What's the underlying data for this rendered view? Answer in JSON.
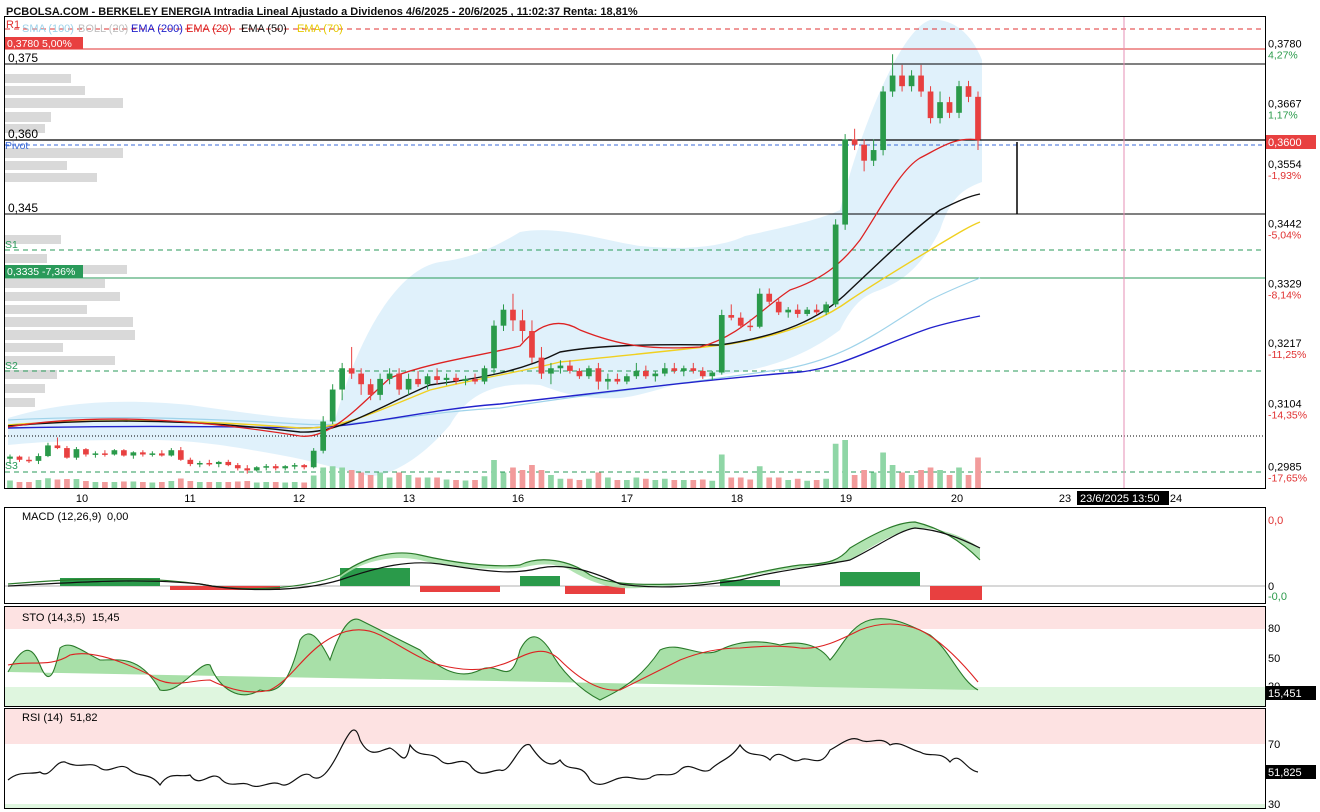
{
  "header": {
    "title": "PCBOLSA.COM - BERKELEY ENERGIA Intradia Lineal Ajustado a Dividenos 4/6/2025 - 20/6/2025 , 11:02:37 Renta: 18,81%",
    "r1": "R1",
    "legend": [
      {
        "label": "SMA (100)",
        "color": "#9fd3ea"
      },
      {
        "label": "BOLL (20)",
        "color": "#bfbfbf"
      },
      {
        "label": "EMA (200)",
        "color": "#2222cc"
      },
      {
        "label": "EMA (20)",
        "color": "#dd2222"
      },
      {
        "label": "EMA (50)",
        "color": "#111111"
      },
      {
        "label": "EMA (70)",
        "color": "#f0d020"
      }
    ]
  },
  "price_panel": {
    "left_tags": {
      "high_tag": "0,3780  5,00%",
      "low_tag": "0,3335  -7,36%",
      "level_0375": "0,375",
      "level_0360": "0,360",
      "level_0345": "0,345",
      "pivot": "Pivot",
      "s1": "S1",
      "s2": "S2",
      "s3": "S3"
    },
    "right_axis": [
      {
        "price": "0,3780",
        "pct": "4,27%",
        "pct_color": "#2a9a4a",
        "value": 0.378
      },
      {
        "price": "0,3667",
        "pct": "1,17%",
        "pct_color": "#2a9a4a",
        "value": 0.3667
      },
      {
        "price": "0,3554",
        "pct": "-1,93%",
        "pct_color": "#e03030",
        "value": 0.3554
      },
      {
        "price": "0,3442",
        "pct": "-5,04%",
        "pct_color": "#e03030",
        "value": 0.3442
      },
      {
        "price": "0,3329",
        "pct": "-8,14%",
        "pct_color": "#e03030",
        "value": 0.3329
      },
      {
        "price": "0,3217",
        "pct": "-11,25%",
        "pct_color": "#e03030",
        "value": 0.3217
      },
      {
        "price": "0,3104",
        "pct": "-14,35%",
        "pct_color": "#e03030",
        "value": 0.3104
      },
      {
        "price": "0,2985",
        "pct": "-17,65%",
        "pct_color": "#e03030",
        "value": 0.2985
      }
    ],
    "current_price": "0,3600",
    "x_labels": [
      "10",
      "11",
      "12",
      "13",
      "16",
      "17",
      "18",
      "19",
      "20",
      "23",
      "24"
    ],
    "cursor_label": "23/6/2025 13:50"
  },
  "macd_panel": {
    "title": "MACD (12,26,9)",
    "value": "0,00",
    "axis": [
      "0,0",
      "0",
      "-0,0"
    ]
  },
  "sto_panel": {
    "title": "STO (14,3,5)",
    "value": "15,45",
    "axis": [
      "80",
      "50",
      "20"
    ],
    "badge": "15,451"
  },
  "rsi_panel": {
    "title": "RSI (14)",
    "value": "51,82",
    "axis": [
      "70",
      "30"
    ],
    "badge": "51,825"
  },
  "chart_data": {
    "type": "line",
    "title": "PCBOLSA.COM - BERKELEY ENERGIA Intradia Lineal Ajustado a Dividenos 4/6/2025 - 20/6/2025 , 11:02:37 Renta: 18,81%",
    "x_categories": [
      "10",
      "11",
      "12",
      "13",
      "16",
      "17",
      "18",
      "19",
      "20"
    ],
    "ylim": [
      0.2945,
      0.383
    ],
    "horizontal_levels": {
      "R1": 0.3805,
      "level_0375": 0.375,
      "level_0360": 0.36,
      "pivot": 0.359,
      "level_0345": 0.3442,
      "S1": 0.337,
      "level_0335": 0.3329,
      "S2": 0.312,
      "S3": 0.2968
    },
    "candles": [
      [
        0.3,
        0.3008,
        0.299,
        0.3004
      ],
      [
        0.3004,
        0.3006,
        0.2994,
        0.2998
      ],
      [
        0.2998,
        0.3004,
        0.2992,
        0.2996
      ],
      [
        0.2996,
        0.301,
        0.299,
        0.3005
      ],
      [
        0.3005,
        0.303,
        0.3003,
        0.3025
      ],
      [
        0.3025,
        0.304,
        0.3018,
        0.302
      ],
      [
        0.302,
        0.3024,
        0.3,
        0.3002
      ],
      [
        0.3002,
        0.3022,
        0.2998,
        0.3018
      ],
      [
        0.3018,
        0.302,
        0.3004,
        0.3008
      ],
      [
        0.3008,
        0.3014,
        0.3002,
        0.301
      ],
      [
        0.301,
        0.3016,
        0.3004,
        0.3008
      ],
      [
        0.3008,
        0.3018,
        0.3006,
        0.3016
      ],
      [
        0.3016,
        0.3018,
        0.3004,
        0.3006
      ],
      [
        0.3006,
        0.3014,
        0.3,
        0.3012
      ],
      [
        0.3012,
        0.3016,
        0.3004,
        0.3008
      ],
      [
        0.3008,
        0.3014,
        0.3004,
        0.301
      ],
      [
        0.301,
        0.3016,
        0.3004,
        0.3006
      ],
      [
        0.3006,
        0.302,
        0.3004,
        0.3016
      ],
      [
        0.3016,
        0.3022,
        0.2996,
        0.2998
      ],
      [
        0.2998,
        0.3002,
        0.2986,
        0.299
      ],
      [
        0.299,
        0.2996,
        0.2984,
        0.2992
      ],
      [
        0.2992,
        0.2998,
        0.2986,
        0.299
      ],
      [
        0.299,
        0.2996,
        0.2984,
        0.2994
      ],
      [
        0.2994,
        0.2998,
        0.2986,
        0.2988
      ],
      [
        0.2988,
        0.2992,
        0.2978,
        0.2982
      ],
      [
        0.2982,
        0.2988,
        0.2972,
        0.2978
      ],
      [
        0.2978,
        0.2986,
        0.2976,
        0.2984
      ],
      [
        0.2984,
        0.299,
        0.2978,
        0.2986
      ],
      [
        0.2986,
        0.299,
        0.2978,
        0.2982
      ],
      [
        0.2982,
        0.2988,
        0.2978,
        0.2986
      ],
      [
        0.2986,
        0.2992,
        0.298,
        0.2988
      ],
      [
        0.2988,
        0.299,
        0.298,
        0.2984
      ],
      [
        0.2984,
        0.302,
        0.2982,
        0.3015
      ],
      [
        0.3015,
        0.308,
        0.301,
        0.307
      ],
      [
        0.307,
        0.314,
        0.3065,
        0.313
      ],
      [
        0.313,
        0.318,
        0.311,
        0.317
      ],
      [
        0.317,
        0.321,
        0.315,
        0.316
      ],
      [
        0.316,
        0.317,
        0.312,
        0.314
      ],
      [
        0.314,
        0.315,
        0.311,
        0.312
      ],
      [
        0.312,
        0.316,
        0.311,
        0.315
      ],
      [
        0.315,
        0.317,
        0.314,
        0.316
      ],
      [
        0.316,
        0.317,
        0.312,
        0.313
      ],
      [
        0.313,
        0.316,
        0.312,
        0.315
      ],
      [
        0.315,
        0.3165,
        0.3135,
        0.314
      ],
      [
        0.314,
        0.316,
        0.313,
        0.3155
      ],
      [
        0.3155,
        0.317,
        0.314,
        0.3148
      ],
      [
        0.3148,
        0.316,
        0.3138,
        0.3152
      ],
      [
        0.3152,
        0.316,
        0.314,
        0.3146
      ],
      [
        0.3146,
        0.3156,
        0.3138,
        0.315
      ],
      [
        0.315,
        0.316,
        0.314,
        0.3145
      ],
      [
        0.3145,
        0.3175,
        0.314,
        0.317
      ],
      [
        0.317,
        0.326,
        0.316,
        0.325
      ],
      [
        0.325,
        0.329,
        0.324,
        0.328
      ],
      [
        0.328,
        0.331,
        0.324,
        0.326
      ],
      [
        0.326,
        0.328,
        0.322,
        0.324
      ],
      [
        0.324,
        0.326,
        0.318,
        0.319
      ],
      [
        0.319,
        0.321,
        0.315,
        0.316
      ],
      [
        0.316,
        0.318,
        0.314,
        0.317
      ],
      [
        0.317,
        0.3185,
        0.316,
        0.3175
      ],
      [
        0.3175,
        0.3185,
        0.316,
        0.3165
      ],
      [
        0.3165,
        0.317,
        0.315,
        0.3155
      ],
      [
        0.3155,
        0.3175,
        0.315,
        0.317
      ],
      [
        0.317,
        0.318,
        0.313,
        0.3145
      ],
      [
        0.3145,
        0.316,
        0.313,
        0.315
      ],
      [
        0.315,
        0.316,
        0.314,
        0.3145
      ],
      [
        0.3145,
        0.316,
        0.314,
        0.3155
      ],
      [
        0.3155,
        0.318,
        0.315,
        0.3165
      ],
      [
        0.3165,
        0.3175,
        0.315,
        0.3155
      ],
      [
        0.3155,
        0.3165,
        0.3145,
        0.316
      ],
      [
        0.316,
        0.318,
        0.3155,
        0.317
      ],
      [
        0.317,
        0.318,
        0.316,
        0.3165
      ],
      [
        0.3165,
        0.3175,
        0.3155,
        0.317
      ],
      [
        0.317,
        0.318,
        0.316,
        0.3165
      ],
      [
        0.3165,
        0.3172,
        0.315,
        0.3155
      ],
      [
        0.3155,
        0.3165,
        0.3148,
        0.3162
      ],
      [
        0.3162,
        0.328,
        0.3158,
        0.327
      ],
      [
        0.327,
        0.329,
        0.326,
        0.3265
      ],
      [
        0.3265,
        0.3275,
        0.3245,
        0.325
      ],
      [
        0.325,
        0.3262,
        0.324,
        0.3248
      ],
      [
        0.3248,
        0.332,
        0.3245,
        0.331
      ],
      [
        0.331,
        0.332,
        0.329,
        0.3295
      ],
      [
        0.3295,
        0.33,
        0.327,
        0.3275
      ],
      [
        0.3275,
        0.3285,
        0.3265,
        0.328
      ],
      [
        0.328,
        0.329,
        0.3265,
        0.3272
      ],
      [
        0.3272,
        0.3285,
        0.3268,
        0.328
      ],
      [
        0.328,
        0.329,
        0.327,
        0.3275
      ],
      [
        0.3275,
        0.3295,
        0.327,
        0.329
      ],
      [
        0.329,
        0.345,
        0.3285,
        0.344
      ],
      [
        0.344,
        0.361,
        0.343,
        0.36
      ],
      [
        0.36,
        0.362,
        0.358,
        0.359
      ],
      [
        0.359,
        0.36,
        0.354,
        0.356
      ],
      [
        0.356,
        0.36,
        0.355,
        0.358
      ],
      [
        0.358,
        0.37,
        0.357,
        0.369
      ],
      [
        0.369,
        0.376,
        0.368,
        0.372
      ],
      [
        0.372,
        0.374,
        0.369,
        0.37
      ],
      [
        0.37,
        0.373,
        0.369,
        0.372
      ],
      [
        0.372,
        0.374,
        0.368,
        0.369
      ],
      [
        0.369,
        0.37,
        0.363,
        0.364
      ],
      [
        0.364,
        0.369,
        0.363,
        0.367
      ],
      [
        0.367,
        0.368,
        0.364,
        0.365
      ],
      [
        0.365,
        0.371,
        0.364,
        0.37
      ],
      [
        0.37,
        0.371,
        0.367,
        0.368
      ],
      [
        0.368,
        0.369,
        0.358,
        0.36
      ]
    ]
  }
}
